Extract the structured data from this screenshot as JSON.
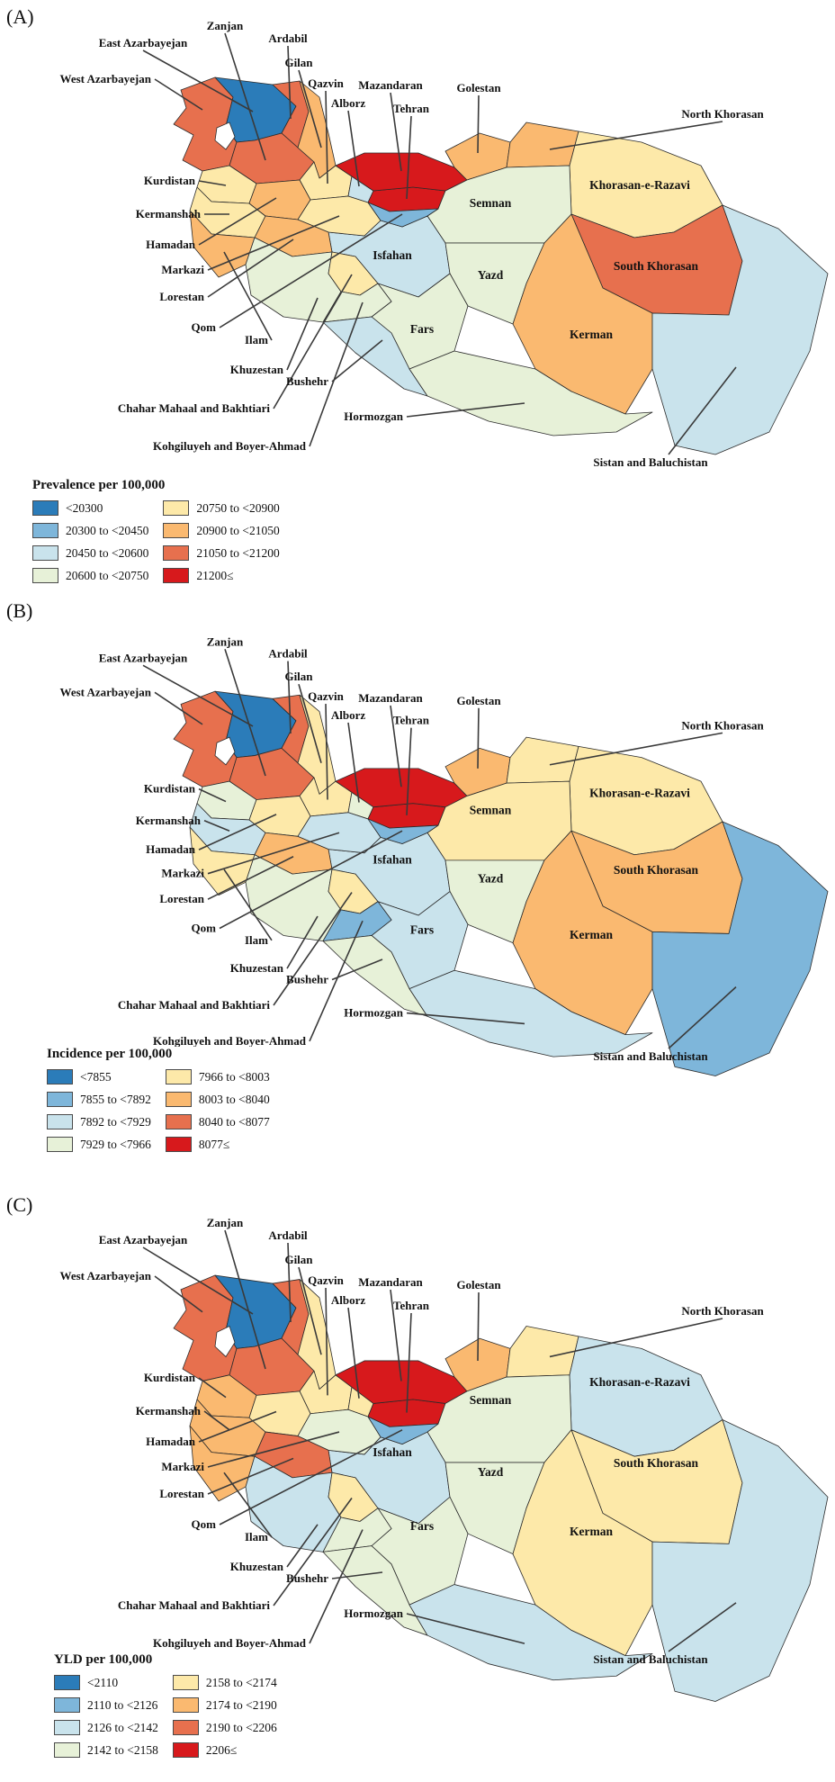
{
  "palette": {
    "1": "#2B7CB9",
    "2": "#7EB6DA",
    "3": "#C9E3EC",
    "4": "#E7F1D8",
    "5": "#FDE9A9",
    "6": "#FAB970",
    "7": "#E7704E",
    "8": "#D7191C"
  },
  "panels": [
    {
      "id": "A",
      "letter": "(A)",
      "legend": {
        "title": "Prevalence per 100,000",
        "items": [
          "<20300",
          "20300 to <20450",
          "20450 to <20600",
          "20600 to <20750",
          "20750 to <20900",
          "20900 to <21050",
          "21050 to <21200",
          "21200≤"
        ]
      }
    },
    {
      "id": "B",
      "letter": "(B)",
      "legend": {
        "title": "Incidence per 100,000",
        "items": [
          "<7855",
          "7855 to <7892",
          "7892 to <7929",
          "7929 to <7966",
          "7966 to <8003",
          "8003 to <8040",
          "8040 to <8077",
          "8077≤"
        ]
      }
    },
    {
      "id": "C",
      "letter": "(C)",
      "legend": {
        "title": "YLD per 100,000",
        "items": [
          "<2110",
          "2110 to <2126",
          "2126 to <2142",
          "2142 to <2158",
          "2158 to <2174",
          "2174 to <2190",
          "2190 to <2206",
          "2206≤"
        ]
      }
    }
  ],
  "provinces": [
    {
      "id": "west-azarbayejan",
      "name": "West Azarbayejan",
      "tiers": {
        "A": 7,
        "B": 7,
        "C": 7
      }
    },
    {
      "id": "east-azarbayejan",
      "name": "East Azarbayejan",
      "tiers": {
        "A": 1,
        "B": 1,
        "C": 1
      }
    },
    {
      "id": "ardabil",
      "name": "Ardabil",
      "tiers": {
        "A": 7,
        "B": 7,
        "C": 7
      }
    },
    {
      "id": "zanjan",
      "name": "Zanjan",
      "tiers": {
        "A": 7,
        "B": 7,
        "C": 7
      }
    },
    {
      "id": "gilan",
      "name": "Gilan",
      "tiers": {
        "A": 6,
        "B": 5,
        "C": 5
      }
    },
    {
      "id": "qazvin",
      "name": "Qazvin",
      "tiers": {
        "A": 5,
        "B": 5,
        "C": 5
      }
    },
    {
      "id": "alborz",
      "name": "Alborz",
      "tiers": {
        "A": 3,
        "B": 4,
        "C": 5
      }
    },
    {
      "id": "tehran",
      "name": "Tehran",
      "tiers": {
        "A": 8,
        "B": 8,
        "C": 8
      }
    },
    {
      "id": "mazandaran",
      "name": "Mazandaran",
      "tiers": {
        "A": 8,
        "B": 8,
        "C": 8
      }
    },
    {
      "id": "golestan",
      "name": "Golestan",
      "tiers": {
        "A": 6,
        "B": 6,
        "C": 6
      }
    },
    {
      "id": "north-khorasan",
      "name": "North Khorasan",
      "tiers": {
        "A": 6,
        "B": 5,
        "C": 5
      }
    },
    {
      "id": "khorasan-e-razavi",
      "name": "Khorasan-e-Razavi",
      "tiers": {
        "A": 5,
        "B": 5,
        "C": 3
      }
    },
    {
      "id": "semnan",
      "name": "Semnan",
      "tiers": {
        "A": 4,
        "B": 5,
        "C": 4
      }
    },
    {
      "id": "south-khorasan",
      "name": "South Khorasan",
      "tiers": {
        "A": 7,
        "B": 6,
        "C": 5
      }
    },
    {
      "id": "isfahan",
      "name": "Isfahan",
      "tiers": {
        "A": 3,
        "B": 3,
        "C": 3
      }
    },
    {
      "id": "yazd",
      "name": "Yazd",
      "tiers": {
        "A": 4,
        "B": 4,
        "C": 4
      }
    },
    {
      "id": "kerman",
      "name": "Kerman",
      "tiers": {
        "A": 6,
        "B": 6,
        "C": 5
      }
    },
    {
      "id": "fars",
      "name": "Fars",
      "tiers": {
        "A": 4,
        "B": 3,
        "C": 4
      }
    },
    {
      "id": "sistan-and-baluchistan",
      "name": "Sistan and Baluchistan",
      "tiers": {
        "A": 3,
        "B": 2,
        "C": 3
      }
    },
    {
      "id": "kurdistan",
      "name": "Kurdistan",
      "tiers": {
        "A": 5,
        "B": 4,
        "C": 6
      }
    },
    {
      "id": "kermanshah",
      "name": "Kermanshah",
      "tiers": {
        "A": 5,
        "B": 3,
        "C": 6
      }
    },
    {
      "id": "hamadan",
      "name": "Hamadan",
      "tiers": {
        "A": 6,
        "B": 5,
        "C": 5
      }
    },
    {
      "id": "markazi",
      "name": "Markazi",
      "tiers": {
        "A": 5,
        "B": 3,
        "C": 4
      }
    },
    {
      "id": "lorestan",
      "name": "Lorestan",
      "tiers": {
        "A": 6,
        "B": 6,
        "C": 7
      }
    },
    {
      "id": "qom",
      "name": "Qom",
      "tiers": {
        "A": 2,
        "B": 2,
        "C": 2
      }
    },
    {
      "id": "ilam",
      "name": "Ilam",
      "tiers": {
        "A": 6,
        "B": 5,
        "C": 6
      }
    },
    {
      "id": "khuzestan",
      "name": "Khuzestan",
      "tiers": {
        "A": 4,
        "B": 4,
        "C": 3
      }
    },
    {
      "id": "chahar-mahaal",
      "name": "Chahar Mahaal and Bakhtiari",
      "tiers": {
        "A": 5,
        "B": 5,
        "C": 5
      }
    },
    {
      "id": "kohgiluyeh",
      "name": "Kohgiluyeh and Boyer-Ahmad",
      "tiers": {
        "A": 4,
        "B": 2,
        "C": 4
      }
    },
    {
      "id": "bushehr",
      "name": "Bushehr",
      "tiers": {
        "A": 3,
        "B": 4,
        "C": 4
      }
    },
    {
      "id": "hormozgan",
      "name": "Hormozgan",
      "tiers": {
        "A": 4,
        "B": 3,
        "C": 3
      }
    }
  ]
}
